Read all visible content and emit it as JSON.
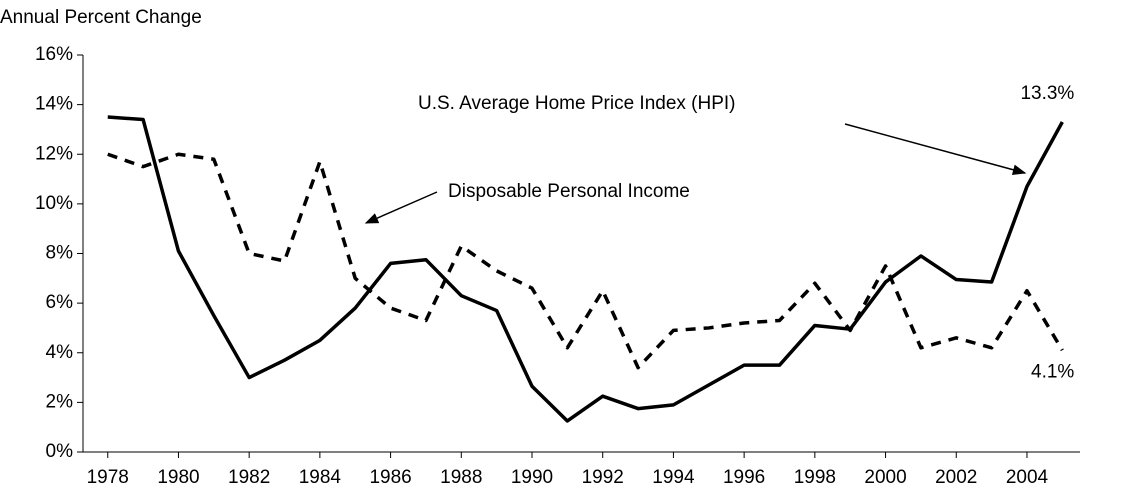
{
  "chart_data": {
    "type": "line",
    "y_axis_title": "Annual Percent Change",
    "x": [
      1978,
      1979,
      1980,
      1981,
      1982,
      1983,
      1984,
      1985,
      1986,
      1987,
      1988,
      1989,
      1990,
      1991,
      1992,
      1993,
      1994,
      1995,
      1996,
      1997,
      1998,
      1999,
      2000,
      2001,
      2002,
      2003,
      2004,
      2005
    ],
    "series": [
      {
        "name": "U.S. Average Home Price Index (HPI)",
        "color": "#000000",
        "dash": "solid",
        "values": [
          13.5,
          13.4,
          8.1,
          5.5,
          3.0,
          3.7,
          4.5,
          5.8,
          7.6,
          7.75,
          6.3,
          5.7,
          2.65,
          1.25,
          2.25,
          1.75,
          1.9,
          2.7,
          3.5,
          3.5,
          5.1,
          4.95,
          6.85,
          7.9,
          6.95,
          6.85,
          10.7,
          13.3
        ],
        "value_labels": [
          null,
          null,
          null,
          null,
          null,
          null,
          null,
          null,
          null,
          null,
          null,
          null,
          null,
          null,
          null,
          null,
          null,
          null,
          null,
          null,
          null,
          null,
          null,
          null,
          null,
          null,
          null,
          "13.3%"
        ]
      },
      {
        "name": "Disposable Personal Income",
        "color": "#000000",
        "dash": "dashed",
        "values": [
          12.0,
          11.5,
          12.0,
          11.8,
          8.0,
          7.7,
          11.7,
          7.0,
          5.8,
          5.3,
          8.3,
          7.3,
          6.6,
          4.2,
          6.5,
          3.4,
          4.9,
          5.0,
          5.2,
          5.3,
          6.8,
          4.9,
          7.5,
          4.2,
          4.6,
          4.2,
          6.5,
          4.1
        ],
        "value_labels": [
          null,
          null,
          null,
          null,
          null,
          null,
          null,
          null,
          null,
          null,
          null,
          null,
          null,
          null,
          null,
          null,
          null,
          null,
          null,
          null,
          null,
          null,
          null,
          null,
          null,
          null,
          null,
          "4.1%"
        ]
      }
    ],
    "xlim": [
      1977.3,
      2005.5
    ],
    "xticks": [
      1978,
      1980,
      1982,
      1984,
      1986,
      1988,
      1990,
      1992,
      1994,
      1996,
      1998,
      2000,
      2002,
      2004
    ],
    "ylim": [
      0,
      16
    ],
    "yticks": [
      {
        "value": 0,
        "label": "0%"
      },
      {
        "value": 2,
        "label": "2%"
      },
      {
        "value": 4,
        "label": "4%"
      },
      {
        "value": 6,
        "label": "6%"
      },
      {
        "value": 8,
        "label": "8%"
      },
      {
        "value": 10,
        "label": "10%"
      },
      {
        "value": 12,
        "label": "12%"
      },
      {
        "value": 14,
        "label": "14%"
      },
      {
        "value": 16,
        "label": "16%"
      }
    ],
    "grid": false
  }
}
